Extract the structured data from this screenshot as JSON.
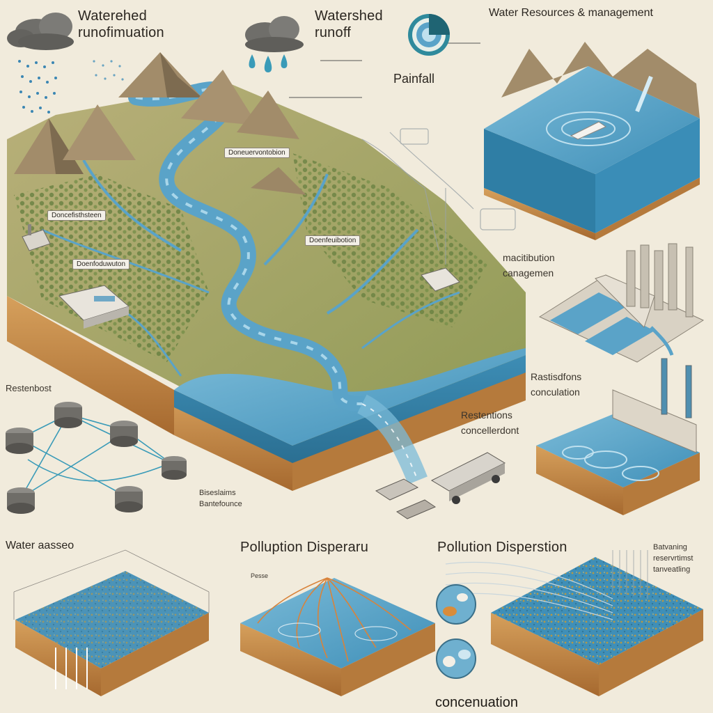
{
  "headings": {
    "top_left_line1": "Waterehed",
    "top_left_line2": "runofimuation",
    "top_mid_line1": "Watershed",
    "top_mid_line2": "runoff",
    "top_right": "Water Resources & management",
    "rainfall": "Painfall",
    "mid_right_1_line1": "macitibution",
    "mid_right_1_line2": "canagemen",
    "mid_right_2_line1": "Rastisdfons",
    "mid_right_2_line2": "conculation",
    "mid_center_line1": "Restentions",
    "mid_center_line2": "concellerdont",
    "left_network": "Restenbost",
    "network_caption_line1": "Biseslaims",
    "network_caption_line2": "Bantefounce",
    "bottom_left": "Water aasseo",
    "bottom_mid": "Polluption Disperaru",
    "bottom_right": "Pollution Disperstion",
    "bottom_right_caption_line1": "Batvaning",
    "bottom_right_caption_line2": "reservrtimst",
    "bottom_right_caption_line3": "tanveatling",
    "bottom_concentration": "concenuation",
    "small_tag_bottom_mid": "Pesse"
  },
  "map_tags": {
    "upper": "Doneuervontobion",
    "left_1": "Doncefisthsteen",
    "left_2": "Doenfoduwuton",
    "center": "Doenfeuibotion"
  },
  "colors": {
    "background": "#f1ebdc",
    "water": "#5aa3c8",
    "water_dark": "#2f7ea5",
    "terrain": "#a7a86a",
    "forest": "#5d7a3a",
    "mountain": "#a28c6a",
    "soil": "#c9924f",
    "soil_dark": "#a6692f",
    "accent_teal": "#2f8a9c"
  },
  "icons": {
    "cloud_1": "cloud-icon",
    "cloud_2": "cloud-icon",
    "rain_gauge": "rain-gauge-icon"
  }
}
